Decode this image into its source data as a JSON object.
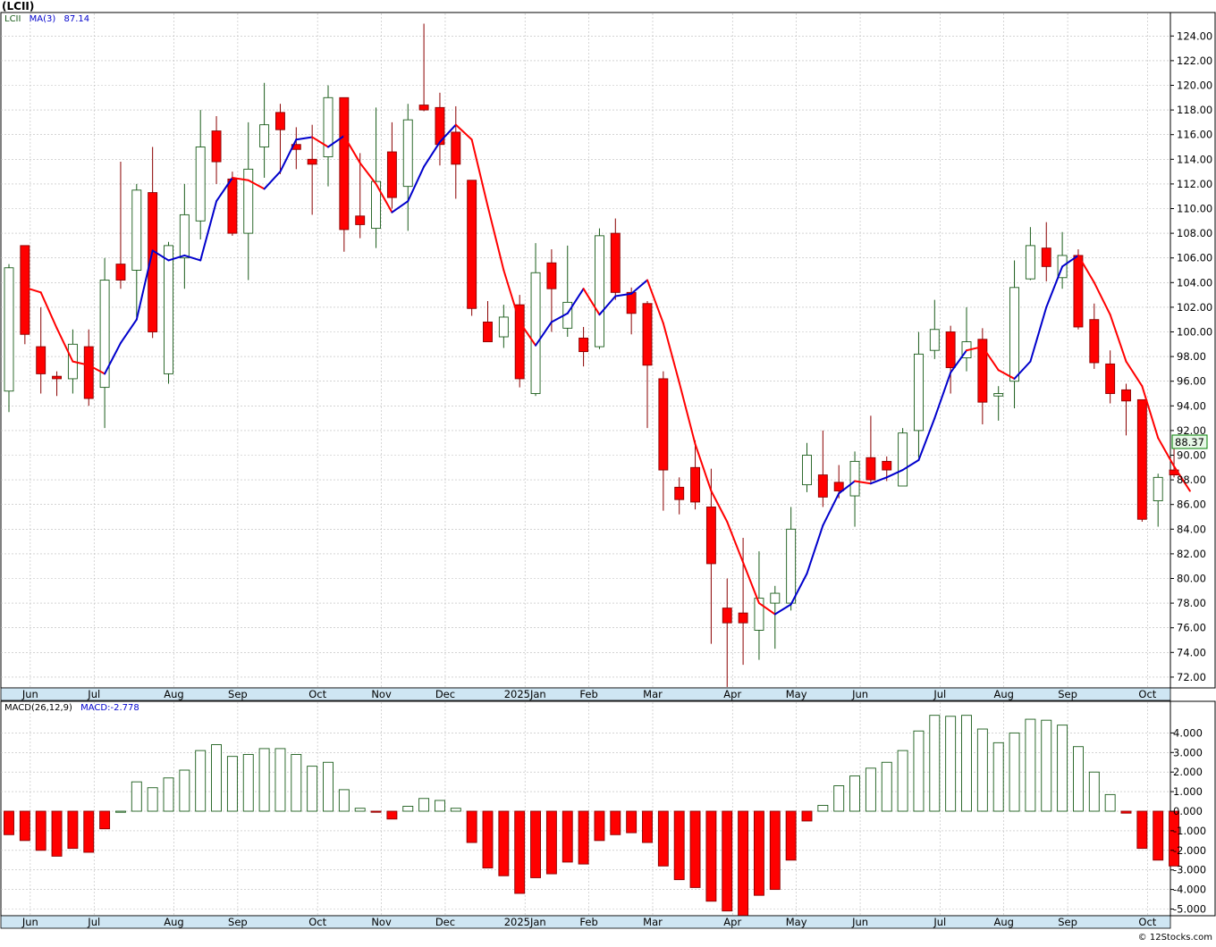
{
  "chart_data": {
    "type": "candlestick",
    "title": "(LCII)",
    "footer": "© 12Stocks.com",
    "legend": {
      "symbol": "LCII",
      "ma_label": "MA(3)",
      "ma_value": "87.14",
      "macd_label": "MACD(26,12,9)",
      "macd_value": "MACD:-2.778"
    },
    "last_price_label": "88.37",
    "price_axis": {
      "min": 71,
      "max": 125,
      "ticks": [
        72,
        74,
        76,
        78,
        80,
        82,
        84,
        86,
        88,
        90,
        92,
        94,
        96,
        98,
        100,
        102,
        104,
        106,
        108,
        110,
        112,
        114,
        116,
        118,
        120,
        122,
        124
      ],
      "tick_labels": [
        "72.00",
        "74.00",
        "76.00",
        "78.00",
        "80.00",
        "82.00",
        "84.00",
        "86.00",
        "88.00",
        "90.00",
        "92.00",
        "94.00",
        "96.00",
        "98.00",
        "100.00",
        "102.00",
        "104.00",
        "106.00",
        "108.00",
        "110.00",
        "112.00",
        "114.00",
        "116.00",
        "118.00",
        "120.00",
        "122.00",
        "124.00"
      ]
    },
    "macd_axis": {
      "min": -5.5,
      "max": 5.2,
      "ticks": [
        -5,
        -4,
        -3,
        -2,
        -1,
        0,
        1,
        2,
        3,
        4
      ],
      "tick_labels": [
        "-5.000",
        "-4.000",
        "-3.000",
        "-2.000",
        "-1.000",
        "0.000",
        "1.000",
        "2.000",
        "3.000",
        "4.000"
      ]
    },
    "months": [
      {
        "label": "Jun",
        "at": 1
      },
      {
        "label": "Jul",
        "at": 5
      },
      {
        "label": "Aug",
        "at": 10
      },
      {
        "label": "Sep",
        "at": 14
      },
      {
        "label": "Oct",
        "at": 19
      },
      {
        "label": "Nov",
        "at": 23
      },
      {
        "label": "Dec",
        "at": 27
      },
      {
        "label": "2025Jan",
        "at": 32
      },
      {
        "label": "Feb",
        "at": 36
      },
      {
        "label": "Mar",
        "at": 40
      },
      {
        "label": "Apr",
        "at": 45
      },
      {
        "label": "May",
        "at": 49
      },
      {
        "label": "Jun",
        "at": 53
      },
      {
        "label": "Jul",
        "at": 58
      },
      {
        "label": "Aug",
        "at": 62
      },
      {
        "label": "Sep",
        "at": 66
      },
      {
        "label": "Oct",
        "at": 71
      }
    ],
    "colors": {
      "up": "#ffffff",
      "up_edge": "#1a5c1a",
      "down": "#ff0000",
      "down_edge": "#8b0000",
      "ma_up": "#0000cc",
      "ma_down": "#ff0000",
      "grid": "#bbbbbb",
      "axis_bg": "#cfe6f3",
      "label_box": "#e8f8e8",
      "label_border": "#008000"
    },
    "candles": [
      {
        "o": 95.2,
        "h": 105.5,
        "l": 93.5,
        "c": 105.2
      },
      {
        "o": 107.0,
        "h": 107.0,
        "l": 99.0,
        "c": 99.8
      },
      {
        "o": 98.8,
        "h": 102.0,
        "l": 95.0,
        "c": 96.6
      },
      {
        "o": 96.4,
        "h": 96.8,
        "l": 94.8,
        "c": 96.2
      },
      {
        "o": 96.2,
        "h": 100.2,
        "l": 95.0,
        "c": 99.0
      },
      {
        "o": 98.8,
        "h": 100.2,
        "l": 94.0,
        "c": 94.6
      },
      {
        "o": 95.5,
        "h": 106.0,
        "l": 92.2,
        "c": 104.2
      },
      {
        "o": 105.5,
        "h": 113.8,
        "l": 103.5,
        "c": 104.2
      },
      {
        "o": 105.0,
        "h": 112.0,
        "l": 101.2,
        "c": 111.5
      },
      {
        "o": 111.3,
        "h": 115.0,
        "l": 99.5,
        "c": 100.0
      },
      {
        "o": 96.6,
        "h": 107.3,
        "l": 95.8,
        "c": 107.0
      },
      {
        "o": 106.0,
        "h": 112.0,
        "l": 103.5,
        "c": 109.5
      },
      {
        "o": 109.0,
        "h": 118.0,
        "l": 107.5,
        "c": 115.0
      },
      {
        "o": 116.3,
        "h": 117.5,
        "l": 112.0,
        "c": 113.8
      },
      {
        "o": 112.4,
        "h": 113.0,
        "l": 107.8,
        "c": 108.0
      },
      {
        "o": 108.0,
        "h": 117.0,
        "l": 104.2,
        "c": 113.2
      },
      {
        "o": 115.0,
        "h": 120.2,
        "l": 112.5,
        "c": 116.8
      },
      {
        "o": 117.8,
        "h": 118.5,
        "l": 112.8,
        "c": 116.4
      },
      {
        "o": 115.2,
        "h": 116.6,
        "l": 113.2,
        "c": 114.8
      },
      {
        "o": 114.0,
        "h": 116.8,
        "l": 109.5,
        "c": 113.6
      },
      {
        "o": 114.2,
        "h": 120.0,
        "l": 111.8,
        "c": 119.0
      },
      {
        "o": 119.0,
        "h": 119.0,
        "l": 106.5,
        "c": 108.3
      },
      {
        "o": 109.4,
        "h": 114.5,
        "l": 107.6,
        "c": 108.7
      },
      {
        "o": 108.4,
        "h": 118.2,
        "l": 106.8,
        "c": 112.2
      },
      {
        "o": 114.6,
        "h": 117.0,
        "l": 110.0,
        "c": 110.9
      },
      {
        "o": 111.8,
        "h": 118.5,
        "l": 108.2,
        "c": 117.2
      },
      {
        "o": 118.4,
        "h": 125.0,
        "l": 117.9,
        "c": 118.0
      },
      {
        "o": 118.2,
        "h": 119.4,
        "l": 113.5,
        "c": 115.2
      },
      {
        "o": 116.2,
        "h": 118.3,
        "l": 110.8,
        "c": 113.6
      },
      {
        "o": 112.3,
        "h": 112.3,
        "l": 101.3,
        "c": 101.9
      },
      {
        "o": 100.8,
        "h": 102.5,
        "l": 99.6,
        "c": 99.2
      },
      {
        "o": 99.6,
        "h": 102.2,
        "l": 98.7,
        "c": 101.2
      },
      {
        "o": 102.2,
        "h": 103.0,
        "l": 95.5,
        "c": 96.2
      },
      {
        "o": 95.0,
        "h": 107.2,
        "l": 94.8,
        "c": 104.8
      },
      {
        "o": 105.6,
        "h": 106.7,
        "l": 100.0,
        "c": 103.5
      },
      {
        "o": 100.3,
        "h": 107.0,
        "l": 99.6,
        "c": 102.4
      },
      {
        "o": 99.5,
        "h": 100.4,
        "l": 97.2,
        "c": 98.4
      },
      {
        "o": 98.8,
        "h": 108.4,
        "l": 98.6,
        "c": 107.8
      },
      {
        "o": 108.0,
        "h": 109.2,
        "l": 102.6,
        "c": 103.2
      },
      {
        "o": 103.2,
        "h": 103.6,
        "l": 99.8,
        "c": 101.5
      },
      {
        "o": 102.3,
        "h": 102.5,
        "l": 92.2,
        "c": 97.3
      },
      {
        "o": 96.2,
        "h": 96.8,
        "l": 85.5,
        "c": 88.8
      },
      {
        "o": 87.4,
        "h": 88.2,
        "l": 85.2,
        "c": 86.4
      },
      {
        "o": 89.0,
        "h": 91.2,
        "l": 85.6,
        "c": 86.2
      },
      {
        "o": 85.8,
        "h": 88.9,
        "l": 74.7,
        "c": 81.2
      },
      {
        "o": 77.6,
        "h": 80.0,
        "l": 71.2,
        "c": 76.4
      },
      {
        "o": 77.2,
        "h": 83.3,
        "l": 73.0,
        "c": 76.4
      },
      {
        "o": 75.8,
        "h": 82.2,
        "l": 73.4,
        "c": 78.4
      },
      {
        "o": 78.0,
        "h": 79.4,
        "l": 74.3,
        "c": 78.8
      },
      {
        "o": 78.0,
        "h": 85.8,
        "l": 77.4,
        "c": 84.0
      },
      {
        "o": 87.6,
        "h": 91.0,
        "l": 87.0,
        "c": 90.0
      },
      {
        "o": 88.4,
        "h": 92.0,
        "l": 85.8,
        "c": 86.6
      },
      {
        "o": 87.8,
        "h": 89.2,
        "l": 86.5,
        "c": 87.1
      },
      {
        "o": 86.7,
        "h": 90.3,
        "l": 84.2,
        "c": 89.5
      },
      {
        "o": 89.8,
        "h": 93.2,
        "l": 87.8,
        "c": 88.0
      },
      {
        "o": 89.5,
        "h": 89.9,
        "l": 87.9,
        "c": 88.8
      },
      {
        "o": 87.5,
        "h": 92.2,
        "l": 87.7,
        "c": 91.8
      },
      {
        "o": 92.0,
        "h": 100.0,
        "l": 89.8,
        "c": 98.2
      },
      {
        "o": 98.5,
        "h": 102.6,
        "l": 97.8,
        "c": 100.2
      },
      {
        "o": 100.0,
        "h": 100.5,
        "l": 95.0,
        "c": 97.1
      },
      {
        "o": 97.9,
        "h": 102.0,
        "l": 96.8,
        "c": 99.2
      },
      {
        "o": 99.4,
        "h": 100.3,
        "l": 92.5,
        "c": 94.3
      },
      {
        "o": 94.8,
        "h": 95.6,
        "l": 92.8,
        "c": 95.0
      },
      {
        "o": 96.0,
        "h": 105.8,
        "l": 93.8,
        "c": 103.6
      },
      {
        "o": 104.3,
        "h": 108.5,
        "l": 104.2,
        "c": 107.0
      },
      {
        "o": 106.8,
        "h": 108.9,
        "l": 104.1,
        "c": 105.3
      },
      {
        "o": 104.4,
        "h": 108.1,
        "l": 103.5,
        "c": 106.2
      },
      {
        "o": 106.2,
        "h": 106.7,
        "l": 100.2,
        "c": 100.4
      },
      {
        "o": 101.0,
        "h": 102.3,
        "l": 97.0,
        "c": 97.5
      },
      {
        "o": 97.4,
        "h": 98.5,
        "l": 94.2,
        "c": 95.0
      },
      {
        "o": 95.3,
        "h": 95.8,
        "l": 91.6,
        "c": 94.4
      },
      {
        "o": 94.5,
        "h": 94.5,
        "l": 84.6,
        "c": 84.8
      },
      {
        "o": 86.3,
        "h": 88.5,
        "l": 84.2,
        "c": 88.2
      },
      {
        "o": 88.8,
        "h": 90.5,
        "l": 88.2,
        "c": 88.4
      }
    ],
    "ma": [
      103.6,
      103.2,
      100.3,
      97.6,
      97.3,
      96.6,
      99.1,
      101.0,
      106.6,
      105.8,
      106.2,
      105.8,
      110.6,
      112.5,
      112.3,
      111.6,
      113.0,
      115.6,
      115.8,
      115.0,
      115.9,
      113.7,
      112.0,
      109.7,
      110.6,
      113.4,
      115.4,
      116.8,
      115.6,
      110.2,
      105.0,
      100.8,
      98.9,
      100.8,
      101.5,
      103.5,
      101.4,
      102.9,
      103.1,
      104.2,
      100.7,
      95.9,
      90.9,
      87.1,
      84.6,
      81.3,
      78.0,
      77.1,
      77.9,
      80.4,
      84.3,
      86.9,
      87.9,
      87.7,
      88.2,
      88.8,
      89.6,
      93.0,
      96.7,
      98.5,
      98.8,
      96.9,
      96.2,
      97.6,
      102.0,
      105.3,
      106.2,
      104.0,
      101.4,
      97.6,
      95.6,
      91.4,
      89.1,
      87.1
    ],
    "ma_colors": [
      "down",
      "down",
      "down",
      "down",
      "down",
      "up",
      "up",
      "up",
      "up",
      "up",
      "up",
      "up",
      "up",
      "down",
      "down",
      "up",
      "up",
      "up",
      "down",
      "up",
      "down",
      "down",
      "down",
      "up",
      "up",
      "up",
      "up",
      "down",
      "down",
      "down",
      "down",
      "down",
      "up",
      "up",
      "up",
      "down",
      "up",
      "up",
      "up",
      "down",
      "down",
      "down",
      "down",
      "down",
      "down",
      "down",
      "down",
      "up",
      "up",
      "up",
      "up",
      "up",
      "down",
      "up",
      "up",
      "up",
      "up",
      "up",
      "up",
      "down",
      "down",
      "down",
      "up",
      "up",
      "up",
      "up",
      "down",
      "down",
      "down",
      "down",
      "down",
      "down",
      "down",
      "down"
    ],
    "macd_hist": [
      -1.2,
      -1.5,
      -2.0,
      -2.3,
      -1.9,
      -2.1,
      -0.9,
      0.0,
      1.5,
      1.2,
      1.7,
      2.1,
      3.1,
      3.4,
      2.8,
      2.9,
      3.2,
      3.2,
      2.9,
      2.3,
      2.5,
      1.1,
      0.15,
      -0.05,
      -0.4,
      0.25,
      0.65,
      0.55,
      0.15,
      -1.6,
      -2.9,
      -3.3,
      -4.2,
      -3.4,
      -3.2,
      -2.6,
      -2.7,
      -1.5,
      -1.2,
      -1.1,
      -1.6,
      -2.8,
      -3.5,
      -3.9,
      -4.6,
      -5.1,
      -5.5,
      -4.3,
      -4.0,
      -2.5,
      -0.5,
      0.3,
      1.3,
      1.8,
      2.2,
      2.5,
      3.1,
      4.1,
      4.9,
      4.85,
      4.9,
      4.2,
      3.5,
      4.0,
      4.7,
      4.65,
      4.4,
      3.3,
      2.0,
      0.85,
      -0.1,
      -1.9,
      -2.5,
      -2.8
    ]
  }
}
